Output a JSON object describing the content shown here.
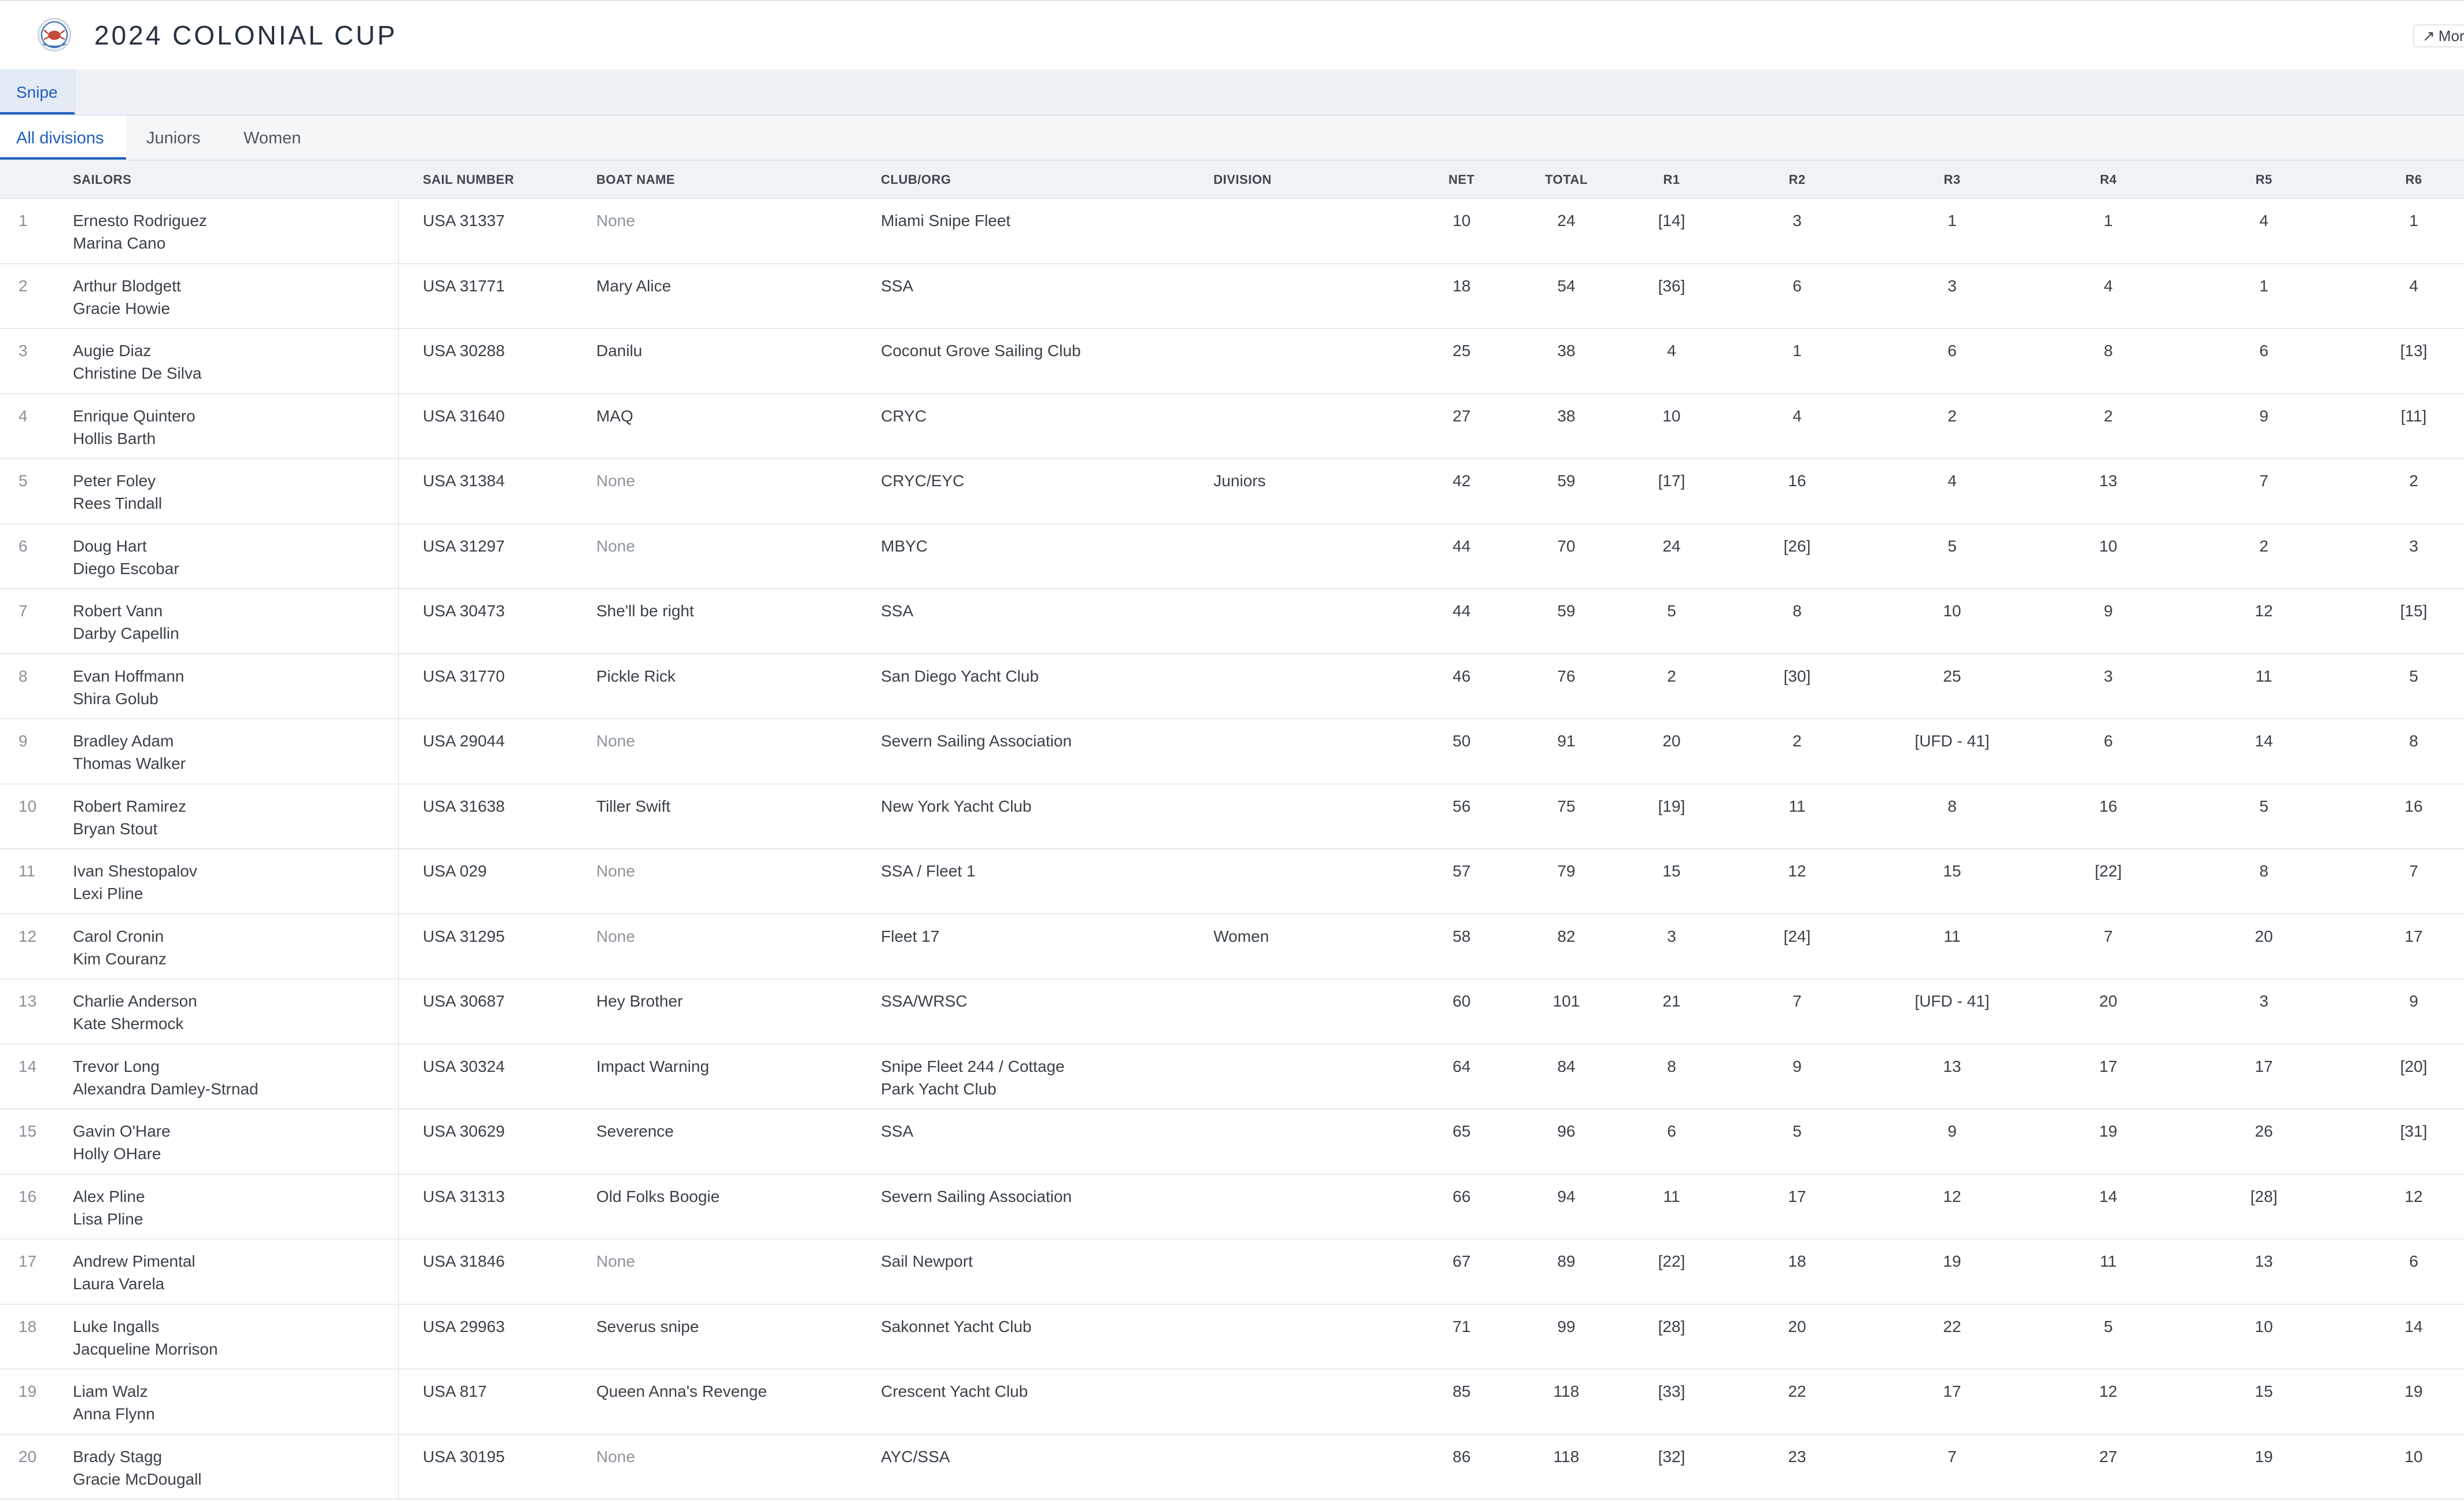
{
  "header": {
    "title": "2024 COLONIAL CUP",
    "more_label": "More",
    "more_icon": "arrow-up-right-icon"
  },
  "class_tabs": [
    {
      "label": "Snipe",
      "active": true
    }
  ],
  "division_tabs": [
    {
      "label": "All divisions",
      "active": true
    },
    {
      "label": "Juniors",
      "active": false
    },
    {
      "label": "Women",
      "active": false
    }
  ],
  "table": {
    "columns": {
      "sailors": "SAILORS",
      "sail_number": "SAIL NUMBER",
      "boat_name": "BOAT NAME",
      "club": "CLUB/ORG",
      "division": "DIVISION",
      "net": "NET",
      "total": "TOTAL",
      "r1": "R1",
      "r2": "R2",
      "r3": "R3",
      "r4": "R4",
      "r5": "R5",
      "r6": "R6"
    },
    "rows": [
      {
        "rank": "1",
        "skipper": "Ernesto Rodriguez",
        "crew": "Marina Cano",
        "sail": "USA 31337",
        "boat": "None",
        "club": "Miami Snipe Fleet",
        "club2": "",
        "division": "",
        "net": "10",
        "total": "24",
        "r": [
          "[14]",
          "3",
          "1",
          "1",
          "4",
          "1"
        ]
      },
      {
        "rank": "2",
        "skipper": "Arthur Blodgett",
        "crew": "Gracie Howie",
        "sail": "USA 31771",
        "boat": "Mary Alice",
        "club": "SSA",
        "club2": "",
        "division": "",
        "net": "18",
        "total": "54",
        "r": [
          "[36]",
          "6",
          "3",
          "4",
          "1",
          "4"
        ]
      },
      {
        "rank": "3",
        "skipper": "Augie Diaz",
        "crew": "Christine De Silva",
        "sail": "USA 30288",
        "boat": "Danilu",
        "club": "Coconut Grove Sailing Club",
        "club2": "",
        "division": "",
        "net": "25",
        "total": "38",
        "r": [
          "4",
          "1",
          "6",
          "8",
          "6",
          "[13]"
        ]
      },
      {
        "rank": "4",
        "skipper": "Enrique Quintero",
        "crew": "Hollis Barth",
        "sail": "USA 31640",
        "boat": "MAQ",
        "club": "CRYC",
        "club2": "",
        "division": "",
        "net": "27",
        "total": "38",
        "r": [
          "10",
          "4",
          "2",
          "2",
          "9",
          "[11]"
        ]
      },
      {
        "rank": "5",
        "skipper": "Peter Foley",
        "crew": "Rees Tindall",
        "sail": "USA 31384",
        "boat": "None",
        "club": "CRYC/EYC",
        "club2": "",
        "division": "Juniors",
        "net": "42",
        "total": "59",
        "r": [
          "[17]",
          "16",
          "4",
          "13",
          "7",
          "2"
        ]
      },
      {
        "rank": "6",
        "skipper": "Doug Hart",
        "crew": "Diego Escobar",
        "sail": "USA 31297",
        "boat": "None",
        "club": "MBYC",
        "club2": "",
        "division": "",
        "net": "44",
        "total": "70",
        "r": [
          "24",
          "[26]",
          "5",
          "10",
          "2",
          "3"
        ]
      },
      {
        "rank": "7",
        "skipper": "Robert Vann",
        "crew": "Darby Capellin",
        "sail": "USA 30473",
        "boat": "She'll be right",
        "club": "SSA",
        "club2": "",
        "division": "",
        "net": "44",
        "total": "59",
        "r": [
          "5",
          "8",
          "10",
          "9",
          "12",
          "[15]"
        ]
      },
      {
        "rank": "8",
        "skipper": "Evan Hoffmann",
        "crew": "Shira Golub",
        "sail": "USA 31770",
        "boat": "Pickle Rick",
        "club": "San Diego Yacht Club",
        "club2": "",
        "division": "",
        "net": "46",
        "total": "76",
        "r": [
          "2",
          "[30]",
          "25",
          "3",
          "11",
          "5"
        ]
      },
      {
        "rank": "9",
        "skipper": "Bradley Adam",
        "crew": "Thomas Walker",
        "sail": "USA 29044",
        "boat": "None",
        "club": "Severn Sailing Association",
        "club2": "",
        "division": "",
        "net": "50",
        "total": "91",
        "r": [
          "20",
          "2",
          "[UFD - 41]",
          "6",
          "14",
          "8"
        ]
      },
      {
        "rank": "10",
        "skipper": "Robert Ramirez",
        "crew": "Bryan Stout",
        "sail": "USA 31638",
        "boat": "Tiller Swift",
        "club": "New York Yacht Club",
        "club2": "",
        "division": "",
        "net": "56",
        "total": "75",
        "r": [
          "[19]",
          "11",
          "8",
          "16",
          "5",
          "16"
        ]
      },
      {
        "rank": "11",
        "skipper": "Ivan Shestopalov",
        "crew": "Lexi Pline",
        "sail": "USA 029",
        "boat": "None",
        "club": "SSA / Fleet 1",
        "club2": "",
        "division": "",
        "net": "57",
        "total": "79",
        "r": [
          "15",
          "12",
          "15",
          "[22]",
          "8",
          "7"
        ]
      },
      {
        "rank": "12",
        "skipper": "Carol Cronin",
        "crew": "Kim Couranz",
        "sail": "USA 31295",
        "boat": "None",
        "club": "Fleet 17",
        "club2": "",
        "division": "Women",
        "net": "58",
        "total": "82",
        "r": [
          "3",
          "[24]",
          "11",
          "7",
          "20",
          "17"
        ]
      },
      {
        "rank": "13",
        "skipper": "Charlie Anderson",
        "crew": "Kate Shermock",
        "sail": "USA 30687",
        "boat": "Hey Brother",
        "club": "SSA/WRSC",
        "club2": "",
        "division": "",
        "net": "60",
        "total": "101",
        "r": [
          "21",
          "7",
          "[UFD - 41]",
          "20",
          "3",
          "9"
        ]
      },
      {
        "rank": "14",
        "skipper": "Trevor Long",
        "crew": "Alexandra Damley-Strnad",
        "sail": "USA 30324",
        "boat": "Impact Warning",
        "club": "Snipe Fleet 244 / Cottage",
        "club2": "Park Yacht Club",
        "division": "",
        "net": "64",
        "total": "84",
        "r": [
          "8",
          "9",
          "13",
          "17",
          "17",
          "[20]"
        ]
      },
      {
        "rank": "15",
        "skipper": "Gavin O'Hare",
        "crew": "Holly OHare",
        "sail": "USA 30629",
        "boat": "Severence",
        "club": "SSA",
        "club2": "",
        "division": "",
        "net": "65",
        "total": "96",
        "r": [
          "6",
          "5",
          "9",
          "19",
          "26",
          "[31]"
        ]
      },
      {
        "rank": "16",
        "skipper": "Alex Pline",
        "crew": "Lisa Pline",
        "sail": "USA 31313",
        "boat": "Old Folks Boogie",
        "club": "Severn Sailing Association",
        "club2": "",
        "division": "",
        "net": "66",
        "total": "94",
        "r": [
          "11",
          "17",
          "12",
          "14",
          "[28]",
          "12"
        ]
      },
      {
        "rank": "17",
        "skipper": "Andrew Pimental",
        "crew": "Laura Varela",
        "sail": "USA 31846",
        "boat": "None",
        "club": "Sail Newport",
        "club2": "",
        "division": "",
        "net": "67",
        "total": "89",
        "r": [
          "[22]",
          "18",
          "19",
          "11",
          "13",
          "6"
        ]
      },
      {
        "rank": "18",
        "skipper": "Luke Ingalls",
        "crew": "Jacqueline Morrison",
        "sail": "USA 29963",
        "boat": "Severus snipe",
        "club": "Sakonnet Yacht Club",
        "club2": "",
        "division": "",
        "net": "71",
        "total": "99",
        "r": [
          "[28]",
          "20",
          "22",
          "5",
          "10",
          "14"
        ]
      },
      {
        "rank": "19",
        "skipper": "Liam Walz",
        "crew": "Anna Flynn",
        "sail": "USA 817",
        "boat": "Queen Anna's Revenge",
        "club": "Crescent Yacht Club",
        "club2": "",
        "division": "",
        "net": "85",
        "total": "118",
        "r": [
          "[33]",
          "22",
          "17",
          "12",
          "15",
          "19"
        ]
      },
      {
        "rank": "20",
        "skipper": "Brady Stagg",
        "crew": "Gracie McDougall",
        "sail": "USA 30195",
        "boat": "None",
        "club": "AYC/SSA",
        "club2": "",
        "division": "",
        "net": "86",
        "total": "118",
        "r": [
          "[32]",
          "23",
          "7",
          "27",
          "19",
          "10"
        ]
      }
    ]
  },
  "colors": {
    "accent": "#1f5fbf",
    "title": "#253140",
    "muted": "#8e959c",
    "tab_bar_bg": "#eef2f6"
  }
}
